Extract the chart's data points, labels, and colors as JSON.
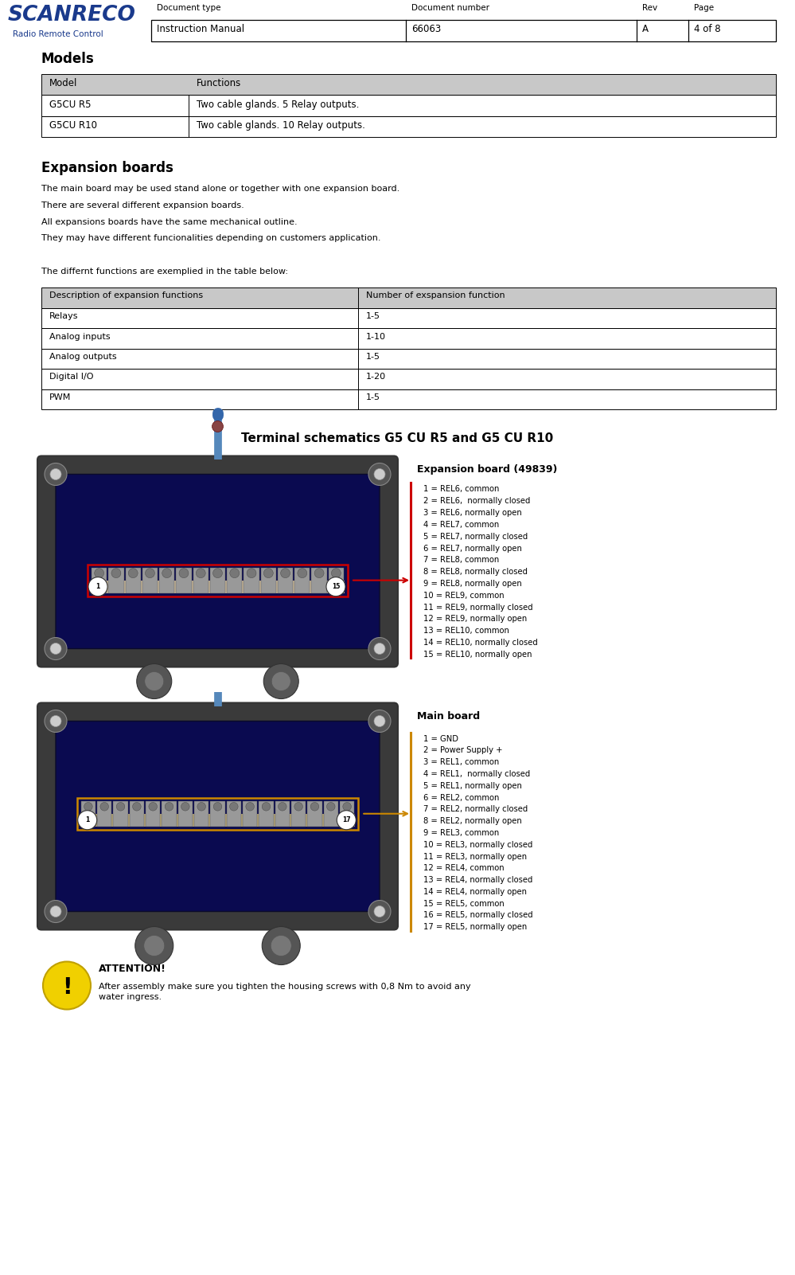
{
  "page_width": 9.99,
  "page_height": 16.01,
  "dpi": 100,
  "bg_color": "#ffffff",
  "header": {
    "doc_type_label": "Document type",
    "doc_number_label": "Document number",
    "rev_label": "Rev",
    "page_label": "Page",
    "doc_type_value": "Instruction Manual",
    "doc_number_value": "66063",
    "rev_value": "A",
    "page_value": "4 of 8"
  },
  "logo_text": "SCANRECO",
  "logo_sub": "Radio Remote Control",
  "logo_color": "#1a3a8c",
  "section1_title": "Models",
  "models_table_headers": [
    "Model",
    "Functions"
  ],
  "models_table_rows": [
    [
      "G5CU R5",
      "Two cable glands. 5 Relay outputs."
    ],
    [
      "G5CU R10",
      "Two cable glands. 10 Relay outputs."
    ]
  ],
  "section2_title": "Expansion boards",
  "expansion_text": [
    "The main board may be used stand alone or together with one expansion board.",
    "There are several different expansion boards.",
    "All expansions boards have the same mechanical outline.",
    "They may have different funcionalities depending on customers application."
  ],
  "table2_intro": "The differnt functions are exemplied in the table below:",
  "expansion_table_headers": [
    "Description of expansion functions",
    "Number of exspansion function"
  ],
  "expansion_table_rows": [
    [
      "Relays",
      "1-5"
    ],
    [
      "Analog inputs",
      "1-10"
    ],
    [
      "Analog outputs",
      "1-5"
    ],
    [
      "Digital I/O",
      "1-20"
    ],
    [
      "PWM",
      "1-5"
    ]
  ],
  "schematic_title": "Terminal schematics G5 CU R5 and G5 CU R10",
  "expansion_board_title": "Expansion board (49839)",
  "expansion_board_lines": [
    "1 = REL6, common",
    "2 = REL6,  normally closed",
    "3 = REL6, normally open",
    "4 = REL7, common",
    "5 = REL7, normally closed",
    "6 = REL7, normally open",
    "7 = REL8, common",
    "8 = REL8, normally closed",
    "9 = REL8, normally open",
    "10 = REL9, common",
    "11 = REL9, normally closed",
    "12 = REL9, normally open",
    "13 = REL10, common",
    "14 = REL10, normally closed",
    "15 = REL10, normally open"
  ],
  "main_board_title": "Main board",
  "main_board_lines": [
    "1 = GND",
    "2 = Power Supply +",
    "3 = REL1, common",
    "4 = REL1,  normally closed",
    "5 = REL1, normally open",
    "6 = REL2, common",
    "7 = REL2, normally closed",
    "8 = REL2, normally open",
    "9 = REL3, common",
    "10 = REL3, normally closed",
    "11 = REL3, normally open",
    "12 = REL4, common",
    "13 = REL4, normally closed",
    "14 = REL4, normally open",
    "15 = REL5, common",
    "16 = REL5, normally closed",
    "17 = REL5, normally open"
  ],
  "attention_title": "ATTENTION!",
  "attention_text": "After assembly make sure you tighten the housing screws with 0,8 Nm to avoid any\nwater ingress.",
  "bar_color_expansion": "#cc0000",
  "bar_color_main": "#cc8800"
}
